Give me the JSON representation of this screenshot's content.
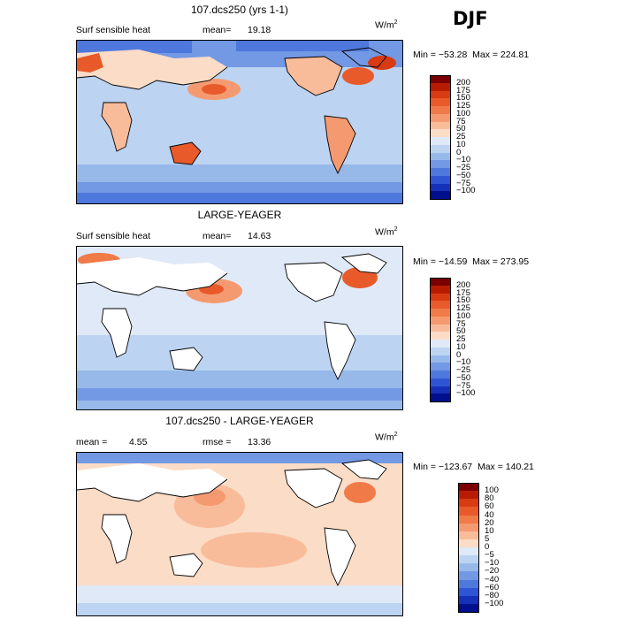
{
  "season": "DJF",
  "panels": [
    {
      "title": "107.dcs250 (yrs 1-1)",
      "left_label": "Surf sensible heat",
      "stat_label": "mean=",
      "stat_value": "19.18",
      "units": "W/m",
      "units_exp": "2",
      "minmax": "Min = −53.28  Max = 224.81",
      "colorbar": {
        "colors": [
          "#7a0000",
          "#b81c00",
          "#d83a12",
          "#e85a2a",
          "#f07a48",
          "#f59a70",
          "#f9bc9a",
          "#fbdcc6",
          "#dfe9f7",
          "#bcd3f1",
          "#97b9ea",
          "#7398e4",
          "#4f78dd",
          "#2f55d4",
          "#1531b9",
          "#000f8c"
        ],
        "labels": [
          "200",
          "175",
          "150",
          "125",
          "100",
          "75",
          "50",
          "25",
          "10",
          "0",
          "−10",
          "−25",
          "−50",
          "−75",
          "−100"
        ]
      }
    },
    {
      "title": "LARGE-YEAGER",
      "left_label": "Surf sensible heat",
      "stat_label": "mean=",
      "stat_value": "14.63",
      "units": "W/m",
      "units_exp": "2",
      "minmax": "Min = −14.59  Max = 273.95",
      "colorbar": {
        "colors": [
          "#7a0000",
          "#b81c00",
          "#d83a12",
          "#e85a2a",
          "#f07a48",
          "#f59a70",
          "#f9bc9a",
          "#fbdcc6",
          "#dfe9f7",
          "#bcd3f1",
          "#97b9ea",
          "#7398e4",
          "#4f78dd",
          "#2f55d4",
          "#1531b9",
          "#000f8c"
        ],
        "labels": [
          "200",
          "175",
          "150",
          "125",
          "100",
          "75",
          "50",
          "25",
          "10",
          "0",
          "−10",
          "−25",
          "−50",
          "−75",
          "−100"
        ]
      }
    },
    {
      "title": "107.dcs250 - LARGE-YEAGER",
      "left_label": "mean =",
      "left_value": "4.55",
      "stat_label": "rmse =",
      "stat_value": "13.36",
      "units": "W/m",
      "units_exp": "2",
      "minmax": "Min = −123.67  Max = 140.21",
      "colorbar": {
        "colors": [
          "#7a0000",
          "#b81c00",
          "#d83a12",
          "#e85a2a",
          "#f07a48",
          "#f59a70",
          "#f9bc9a",
          "#fbdcc6",
          "#dfe9f7",
          "#bcd3f1",
          "#97b9ea",
          "#7398e4",
          "#4f78dd",
          "#2f55d4",
          "#1531b9",
          "#000f8c"
        ],
        "labels": [
          "100",
          "80",
          "60",
          "40",
          "20",
          "10",
          "5",
          "0",
          "−5",
          "−10",
          "−20",
          "−40",
          "−60",
          "−80",
          "−100"
        ]
      }
    }
  ]
}
